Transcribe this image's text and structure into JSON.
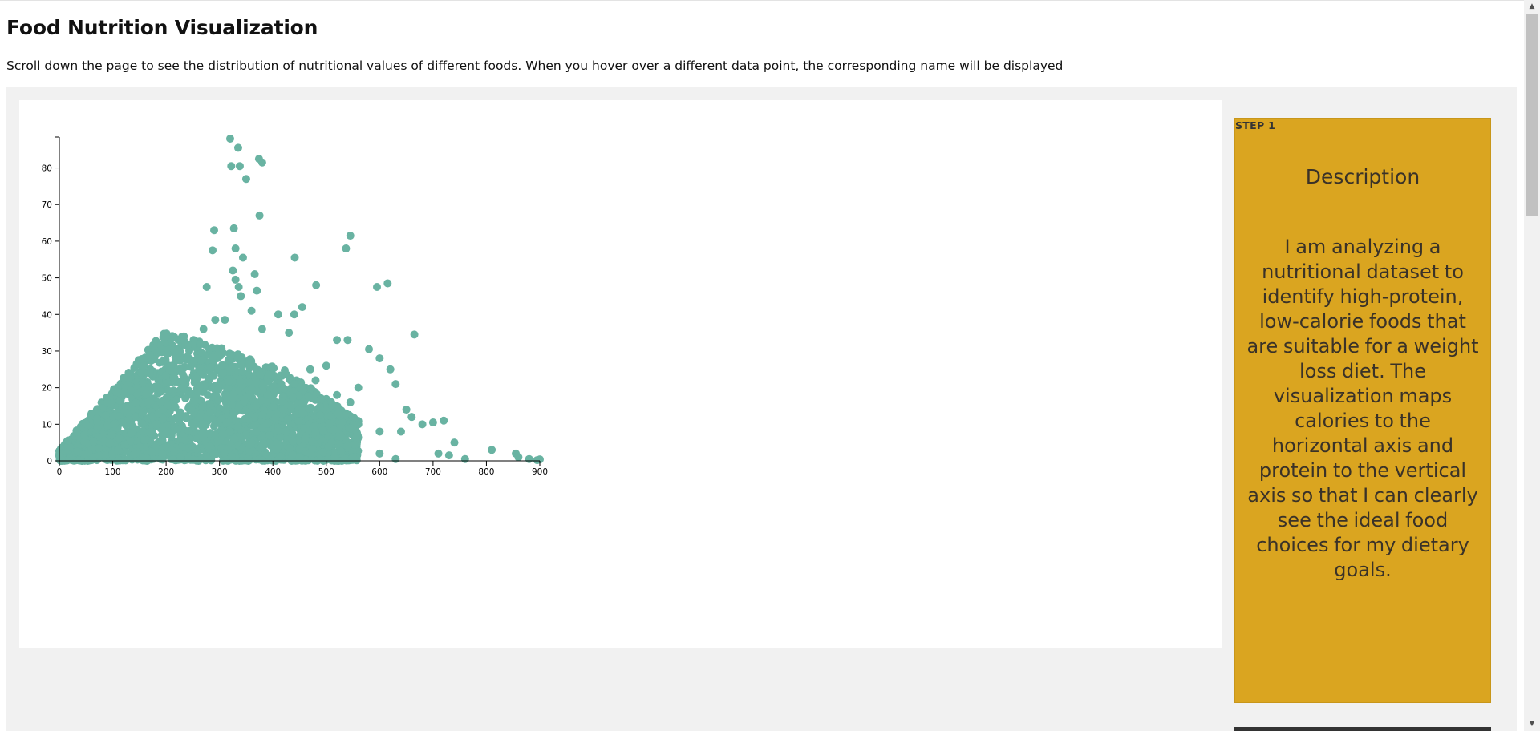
{
  "page": {
    "title": "Food Nutrition Visualization",
    "intro": "Scroll down the page to see the distribution of nutritional values of different foods. When you hover over a different data point, the corresponding name will be displayed"
  },
  "step": {
    "label": "STEP 1",
    "heading": "Description",
    "body": "I am analyzing a nutritional dataset to identify high-protein, low-calorie foods that are suitable for a weight loss diet. The visualization maps calories to the horizontal axis and protein to the vertical axis so that I can clearly see the ideal food choices for my dietary goals."
  },
  "colors": {
    "point": "#69b3a2",
    "card": "#daa520",
    "stage": "#f1f1f1"
  },
  "chart_data": {
    "type": "scatter",
    "title": "",
    "xlabel": "",
    "ylabel": "",
    "xlim": [
      0,
      900
    ],
    "ylim": [
      0,
      88
    ],
    "xticks": [
      0,
      100,
      200,
      300,
      400,
      500,
      600,
      700,
      800,
      900
    ],
    "yticks": [
      0,
      10,
      20,
      30,
      40,
      50,
      60,
      70,
      80
    ],
    "grid": false,
    "legend": "none",
    "series": [
      {
        "points": [
          [
            320,
            88
          ],
          [
            335,
            85.5
          ],
          [
            322,
            80.5
          ],
          [
            338,
            80.5
          ],
          [
            374,
            82.5
          ],
          [
            380,
            81.5
          ],
          [
            350,
            77
          ],
          [
            375,
            67
          ],
          [
            290,
            63
          ],
          [
            327,
            63.5
          ],
          [
            545,
            61.5
          ],
          [
            287,
            57.5
          ],
          [
            330,
            58
          ],
          [
            344,
            55.5
          ],
          [
            441,
            55.5
          ],
          [
            537,
            58
          ],
          [
            276,
            47.5
          ],
          [
            325,
            52
          ],
          [
            330,
            49.5
          ],
          [
            366,
            51
          ],
          [
            336,
            47.5
          ],
          [
            370,
            46.5
          ],
          [
            340,
            45
          ],
          [
            481,
            48
          ],
          [
            595,
            47.5
          ],
          [
            615,
            48.5
          ],
          [
            292,
            38.5
          ],
          [
            310,
            38.5
          ],
          [
            360,
            41
          ],
          [
            410,
            40
          ],
          [
            440,
            40
          ],
          [
            455,
            42
          ],
          [
            270,
            36
          ],
          [
            380,
            36
          ],
          [
            430,
            35
          ],
          [
            665,
            34.5
          ],
          [
            520,
            33
          ],
          [
            540,
            33
          ],
          [
            580,
            30.5
          ],
          [
            600,
            28
          ],
          [
            620,
            25
          ],
          [
            630,
            21
          ],
          [
            560,
            20
          ],
          [
            650,
            14
          ],
          [
            700,
            10.5
          ],
          [
            720,
            11
          ],
          [
            740,
            5
          ],
          [
            710,
            2
          ],
          [
            730,
            1.5
          ],
          [
            760,
            0.5
          ],
          [
            810,
            3
          ],
          [
            855,
            2
          ],
          [
            860,
            1
          ],
          [
            880,
            0.5
          ],
          [
            895,
            0.2
          ],
          [
            900,
            0.4
          ],
          [
            470,
            25
          ],
          [
            480,
            22
          ],
          [
            500,
            26
          ],
          [
            520,
            18
          ],
          [
            545,
            16
          ],
          [
            560,
            10
          ],
          [
            600,
            8
          ],
          [
            640,
            8
          ],
          [
            660,
            12
          ],
          [
            680,
            10
          ],
          [
            480,
            8
          ],
          [
            510,
            5
          ],
          [
            540,
            4
          ],
          [
            550,
            1
          ],
          [
            600,
            2
          ],
          [
            630,
            0.5
          ],
          [
            420,
            14
          ],
          [
            440,
            21
          ],
          [
            460,
            6
          ],
          [
            450,
            1
          ],
          [
            410,
            4
          ],
          [
            380,
            9
          ],
          [
            360,
            5
          ]
        ]
      }
    ]
  }
}
